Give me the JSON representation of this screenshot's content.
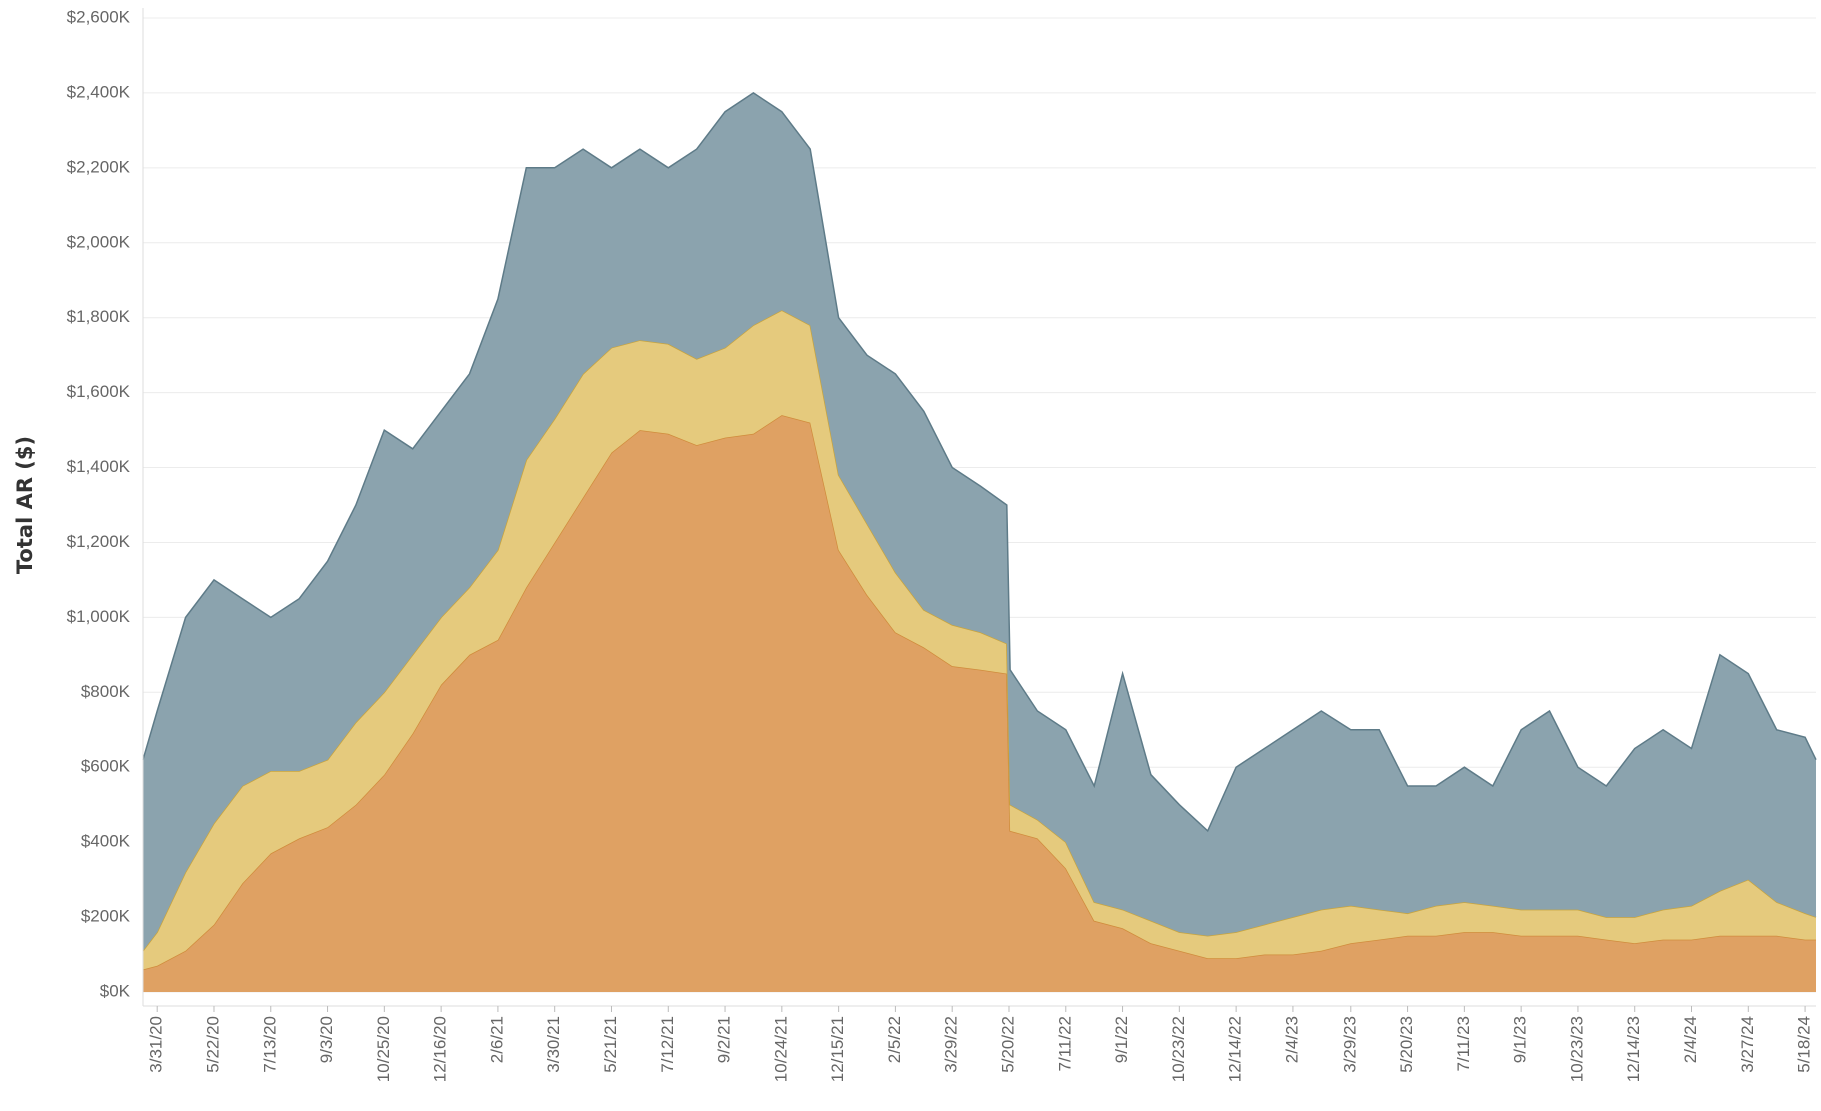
{
  "chart_data": {
    "type": "stacked_area",
    "y_label": "Total AR ($)",
    "xlim": [
      "2020-03-18",
      "2024-05-28"
    ],
    "xticks": [
      {
        "value": "2020-03-31",
        "label": "3/31/20"
      },
      {
        "value": "2020-05-22",
        "label": "5/22/20"
      },
      {
        "value": "2020-07-13",
        "label": "7/13/20"
      },
      {
        "value": "2020-09-03",
        "label": "9/3/20"
      },
      {
        "value": "2020-10-25",
        "label": "10/25/20"
      },
      {
        "value": "2020-12-16",
        "label": "12/16/20"
      },
      {
        "value": "2021-02-06",
        "label": "2/6/21"
      },
      {
        "value": "2021-03-30",
        "label": "3/30/21"
      },
      {
        "value": "2021-05-21",
        "label": "5/21/21"
      },
      {
        "value": "2021-07-12",
        "label": "7/12/21"
      },
      {
        "value": "2021-09-02",
        "label": "9/2/21"
      },
      {
        "value": "2021-10-24",
        "label": "10/24/21"
      },
      {
        "value": "2021-12-15",
        "label": "12/15/21"
      },
      {
        "value": "2022-02-05",
        "label": "2/5/22"
      },
      {
        "value": "2022-03-29",
        "label": "3/29/22"
      },
      {
        "value": "2022-05-20",
        "label": "5/20/22"
      },
      {
        "value": "2022-07-11",
        "label": "7/11/22"
      },
      {
        "value": "2022-09-01",
        "label": "9/1/22"
      },
      {
        "value": "2022-10-23",
        "label": "10/23/22"
      },
      {
        "value": "2022-12-14",
        "label": "12/14/22"
      },
      {
        "value": "2023-02-04",
        "label": "2/4/23"
      },
      {
        "value": "2023-03-29",
        "label": "3/29/23"
      },
      {
        "value": "2023-05-20",
        "label": "5/20/23"
      },
      {
        "value": "2023-07-11",
        "label": "7/11/23"
      },
      {
        "value": "2023-09-01",
        "label": "9/1/23"
      },
      {
        "value": "2023-10-23",
        "label": "10/23/23"
      },
      {
        "value": "2023-12-14",
        "label": "12/14/23"
      },
      {
        "value": "2024-02-04",
        "label": "2/4/24"
      },
      {
        "value": "2024-03-27",
        "label": "3/27/24"
      },
      {
        "value": "2024-05-18",
        "label": "5/18/24"
      }
    ],
    "ylim": [
      0,
      2600000
    ],
    "yticks": [
      {
        "value": 0,
        "label": "$0K"
      },
      {
        "value": 200000,
        "label": "$200K"
      },
      {
        "value": 400000,
        "label": "$400K"
      },
      {
        "value": 600000,
        "label": "$600K"
      },
      {
        "value": 800000,
        "label": "$800K"
      },
      {
        "value": 1000000,
        "label": "$1,000K"
      },
      {
        "value": 1200000,
        "label": "$1,200K"
      },
      {
        "value": 1400000,
        "label": "$1,400K"
      },
      {
        "value": 1600000,
        "label": "$1,600K"
      },
      {
        "value": 1800000,
        "label": "$1,800K"
      },
      {
        "value": 2000000,
        "label": "$2,000K"
      },
      {
        "value": 2200000,
        "label": "$2,200K"
      },
      {
        "value": 2400000,
        "label": "$2,400K"
      },
      {
        "value": 2600000,
        "label": "$2,600K"
      }
    ],
    "grid": true,
    "x": [
      "2020-03-18",
      "2020-03-31",
      "2020-04-26",
      "2020-05-22",
      "2020-06-17",
      "2020-07-13",
      "2020-08-08",
      "2020-09-03",
      "2020-09-29",
      "2020-10-25",
      "2020-11-20",
      "2020-12-16",
      "2021-01-11",
      "2021-02-06",
      "2021-03-04",
      "2021-03-30",
      "2021-04-25",
      "2021-05-21",
      "2021-06-16",
      "2021-07-12",
      "2021-08-07",
      "2021-09-02",
      "2021-09-28",
      "2021-10-24",
      "2021-11-19",
      "2021-12-15",
      "2022-01-10",
      "2022-02-05",
      "2022-03-03",
      "2022-03-29",
      "2022-04-24",
      "2022-05-18",
      "2022-05-21",
      "2022-06-15",
      "2022-07-11",
      "2022-08-06",
      "2022-09-01",
      "2022-09-27",
      "2022-10-23",
      "2022-11-18",
      "2022-12-14",
      "2023-01-09",
      "2023-02-04",
      "2023-03-02",
      "2023-03-29",
      "2023-04-24",
      "2023-05-20",
      "2023-06-15",
      "2023-07-11",
      "2023-08-06",
      "2023-09-01",
      "2023-09-27",
      "2023-10-23",
      "2023-11-18",
      "2023-12-14",
      "2024-01-09",
      "2024-02-04",
      "2024-03-01",
      "2024-03-27",
      "2024-04-22",
      "2024-05-18",
      "2024-05-28"
    ],
    "series": [
      {
        "color": "#dfa163",
        "line_color": "#d08c3c",
        "values": [
          60000,
          70000,
          110000,
          180000,
          290000,
          370000,
          410000,
          440000,
          500000,
          580000,
          690000,
          820000,
          900000,
          940000,
          1080000,
          1200000,
          1320000,
          1440000,
          1500000,
          1490000,
          1460000,
          1480000,
          1490000,
          1540000,
          1520000,
          1180000,
          1060000,
          960000,
          920000,
          870000,
          860000,
          850000,
          430000,
          410000,
          330000,
          190000,
          170000,
          130000,
          110000,
          90000,
          90000,
          100000,
          100000,
          110000,
          130000,
          140000,
          150000,
          150000,
          160000,
          160000,
          150000,
          150000,
          150000,
          140000,
          130000,
          140000,
          140000,
          150000,
          150000,
          150000,
          140000,
          140000
        ]
      },
      {
        "color": "#e5ca7d",
        "line_color": "#c8a43e",
        "values": [
          50000,
          90000,
          210000,
          270000,
          260000,
          220000,
          180000,
          180000,
          220000,
          220000,
          210000,
          180000,
          180000,
          240000,
          340000,
          330000,
          330000,
          280000,
          240000,
          240000,
          230000,
          240000,
          290000,
          280000,
          260000,
          200000,
          190000,
          160000,
          100000,
          110000,
          100000,
          80000,
          70000,
          50000,
          70000,
          50000,
          50000,
          60000,
          50000,
          60000,
          70000,
          80000,
          100000,
          110000,
          100000,
          80000,
          60000,
          80000,
          80000,
          70000,
          70000,
          70000,
          70000,
          60000,
          70000,
          80000,
          90000,
          120000,
          150000,
          90000,
          70000,
          60000
        ]
      },
      {
        "color": "#8ba3ae",
        "line_color": "#5e7b88",
        "values": [
          510000,
          590000,
          680000,
          650000,
          500000,
          410000,
          460000,
          530000,
          580000,
          700000,
          550000,
          550000,
          570000,
          670000,
          780000,
          670000,
          600000,
          480000,
          510000,
          470000,
          560000,
          630000,
          620000,
          530000,
          470000,
          420000,
          450000,
          530000,
          530000,
          420000,
          390000,
          370000,
          360000,
          290000,
          300000,
          310000,
          630000,
          390000,
          340000,
          280000,
          440000,
          470000,
          500000,
          530000,
          470000,
          480000,
          340000,
          320000,
          360000,
          320000,
          480000,
          530000,
          380000,
          350000,
          450000,
          480000,
          420000,
          630000,
          550000,
          460000,
          470000,
          420000
        ]
      }
    ]
  }
}
